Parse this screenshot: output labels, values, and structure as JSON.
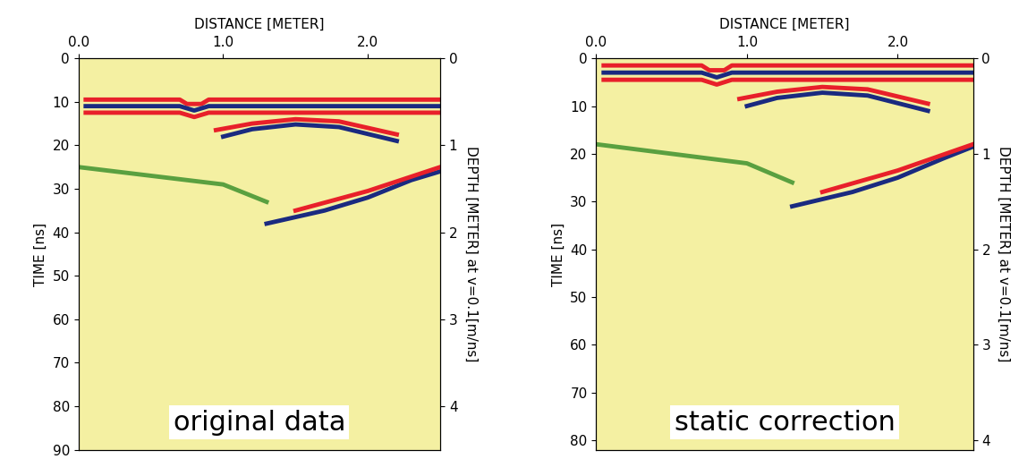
{
  "chart_data": [
    {
      "type": "line",
      "annotation": "original data",
      "x_label": "DISTANCE [METER]",
      "y_label": "TIME [ns]",
      "y2_label": "DEPTH [METER] at v=0.1[m/ns]",
      "xlim": [
        0,
        2.5
      ],
      "xticks": [
        0.0,
        1.0,
        2.0
      ],
      "ylim": [
        90,
        0
      ],
      "yticks": [
        0,
        10,
        20,
        30,
        40,
        50,
        60,
        70,
        80,
        90
      ],
      "y2lim": [
        4.5,
        0
      ],
      "y2ticks": [
        0,
        1,
        2,
        3,
        4
      ],
      "grid": false,
      "series": [
        {
          "color": "#e8202a",
          "x": [
            0.05,
            0.7,
            0.75,
            0.85,
            0.9,
            2.5
          ],
          "values": [
            9.5,
            9.5,
            10.5,
            10.5,
            9.5,
            9.5
          ]
        },
        {
          "color": "#1a2a80",
          "x": [
            0.05,
            0.7,
            0.8,
            0.9,
            2.5
          ],
          "values": [
            11,
            11,
            12,
            11,
            11
          ]
        },
        {
          "color": "#e8202a",
          "x": [
            0.05,
            0.7,
            0.8,
            0.9,
            2.5
          ],
          "values": [
            12.5,
            12.5,
            13.5,
            12.5,
            12.5
          ]
        },
        {
          "color": "#e8202a",
          "x": [
            0.95,
            1.2,
            1.5,
            1.8,
            2.2
          ],
          "values": [
            16.5,
            15,
            14,
            14.5,
            17.5
          ]
        },
        {
          "color": "#1a2a80",
          "x": [
            1.0,
            1.2,
            1.5,
            1.8,
            2.2
          ],
          "values": [
            18,
            16.3,
            15.2,
            15.8,
            19
          ]
        },
        {
          "color": "#5aa040",
          "x": [
            0.0,
            0.5,
            1.0,
            1.3
          ],
          "values": [
            25,
            27,
            29,
            33
          ]
        },
        {
          "color": "#1a2a80",
          "x": [
            1.3,
            1.7,
            2.0,
            2.3,
            2.5
          ],
          "values": [
            38,
            35,
            32,
            28,
            26
          ]
        },
        {
          "color": "#e8202a",
          "x": [
            1.5,
            2.0,
            2.5
          ],
          "values": [
            35,
            30.5,
            25
          ]
        }
      ]
    },
    {
      "type": "line",
      "annotation": "static correction",
      "x_label": "DISTANCE [METER]",
      "y_label": "TIME [ns]",
      "y2_label": "DEPTH [METER] at v=0.1[m/ns]",
      "xlim": [
        0,
        2.5
      ],
      "xticks": [
        0.0,
        1.0,
        2.0
      ],
      "ylim": [
        82,
        0
      ],
      "yticks": [
        0,
        10,
        20,
        30,
        40,
        50,
        60,
        70,
        80
      ],
      "y2lim": [
        4.1,
        0
      ],
      "y2ticks": [
        0,
        1,
        2,
        3,
        4
      ],
      "grid": false,
      "series": [
        {
          "color": "#e8202a",
          "x": [
            0.05,
            0.7,
            0.75,
            0.85,
            0.9,
            2.5
          ],
          "values": [
            1.5,
            1.5,
            2.5,
            2.5,
            1.5,
            1.5
          ]
        },
        {
          "color": "#1a2a80",
          "x": [
            0.05,
            0.7,
            0.8,
            0.9,
            2.5
          ],
          "values": [
            3,
            3,
            4,
            3,
            3
          ]
        },
        {
          "color": "#e8202a",
          "x": [
            0.05,
            0.7,
            0.8,
            0.9,
            2.5
          ],
          "values": [
            4.5,
            4.5,
            5.5,
            4.5,
            4.5
          ]
        },
        {
          "color": "#e8202a",
          "x": [
            0.95,
            1.2,
            1.5,
            1.8,
            2.2
          ],
          "values": [
            8.5,
            7,
            6,
            6.5,
            9.5
          ]
        },
        {
          "color": "#1a2a80",
          "x": [
            1.0,
            1.2,
            1.5,
            1.8,
            2.2
          ],
          "values": [
            10,
            8.3,
            7.2,
            7.8,
            11
          ]
        },
        {
          "color": "#5aa040",
          "x": [
            0.0,
            0.5,
            1.0,
            1.3
          ],
          "values": [
            18,
            20,
            22,
            26
          ]
        },
        {
          "color": "#1a2a80",
          "x": [
            1.3,
            1.7,
            2.0,
            2.3,
            2.5
          ],
          "values": [
            31,
            28,
            25,
            21,
            18.5
          ]
        },
        {
          "color": "#e8202a",
          "x": [
            1.5,
            2.0,
            2.5
          ],
          "values": [
            28,
            23.5,
            18
          ]
        }
      ]
    }
  ]
}
